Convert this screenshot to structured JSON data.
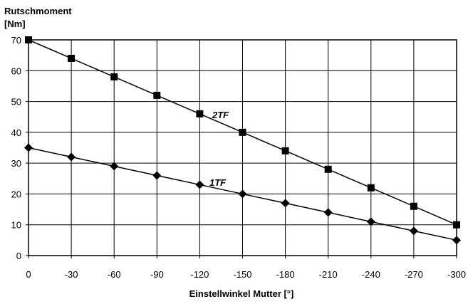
{
  "chart_data": {
    "type": "line",
    "ylabel_line1": "Rutschmoment",
    "ylabel_line2": "[Nm]",
    "xlabel": "Einstellwinkel Mutter [°]",
    "x": [
      0,
      -30,
      -60,
      -90,
      -120,
      -150,
      -180,
      -210,
      -240,
      -270,
      -300
    ],
    "x_tick_labels": [
      "0",
      "-30",
      "-60",
      "-90",
      "-120",
      "-150",
      "-180",
      "-210",
      "-240",
      "-270",
      "-300"
    ],
    "y_ticks": [
      0,
      10,
      20,
      30,
      40,
      50,
      60,
      70
    ],
    "y_tick_labels": [
      "0",
      "10",
      "20",
      "30",
      "40",
      "50",
      "60",
      "70"
    ],
    "xlim": [
      0,
      -300
    ],
    "ylim": [
      0,
      70
    ],
    "grid": true,
    "series": [
      {
        "name": "2TF",
        "marker": "square",
        "values": [
          70,
          64,
          58,
          52,
          46,
          40,
          34,
          28,
          22,
          16,
          10
        ]
      },
      {
        "name": "1TF",
        "marker": "diamond",
        "values": [
          35,
          32,
          29,
          26,
          23,
          20,
          17,
          14,
          11,
          8,
          5
        ]
      }
    ]
  }
}
